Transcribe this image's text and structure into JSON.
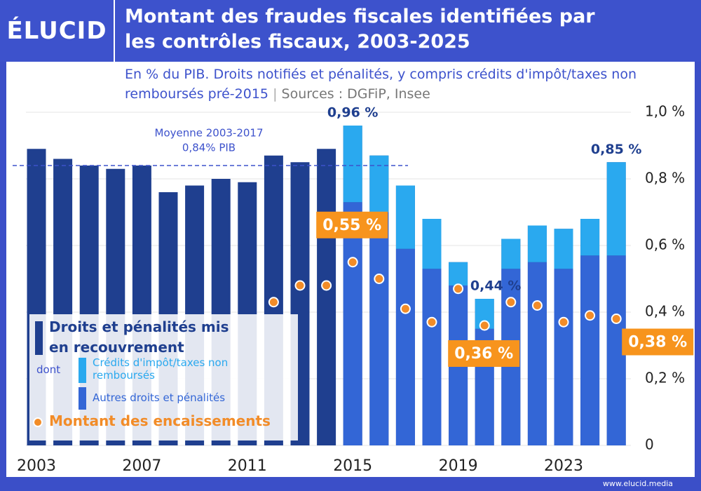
{
  "header": {
    "logo": "ÉLUCID"
  },
  "chart_data": {
    "type": "bar",
    "title": "Montant des fraudes fiscales identifiées par les contrôles fiscaux, 2003-2025",
    "subtitle": "En % du PIB. Droits notifiés et pénalités, y compris crédits d'impôt/taxes non remboursés pré-2015",
    "source": "Sources : DGFiP, Insee",
    "categories": [
      "2003",
      null,
      null,
      null,
      "2007",
      null,
      null,
      null,
      "2011",
      null,
      null,
      null,
      "2015",
      null,
      null,
      null,
      "2019",
      null,
      null,
      null,
      "2023",
      null,
      null
    ],
    "series": [
      {
        "name": "Droits et pénalités mis en recouvrement",
        "color": "#1f3f8f",
        "values": [
          0.89,
          0.86,
          0.84,
          0.83,
          0.84,
          0.76,
          0.78,
          0.8,
          0.79,
          0.87,
          0.85,
          0.89,
          0.96,
          0.87,
          0.78,
          0.68,
          0.55,
          0.44,
          0.62,
          0.66,
          0.65,
          0.68,
          0.85
        ],
        "value_labels": [
          null,
          null,
          null,
          null,
          null,
          null,
          null,
          null,
          null,
          null,
          null,
          null,
          "0,96 %",
          null,
          null,
          null,
          null,
          "0,44 %",
          null,
          null,
          null,
          null,
          "0,85 %"
        ]
      },
      {
        "name": "Crédits d'impôt/taxes non remboursés",
        "color": "#2aa9ef",
        "values": [
          null,
          null,
          null,
          null,
          null,
          null,
          null,
          null,
          null,
          null,
          null,
          null,
          0.23,
          0.17,
          0.19,
          0.15,
          0.07,
          0.09,
          0.09,
          0.11,
          0.12,
          0.11,
          0.28
        ]
      },
      {
        "name": "Autres droits et pénalités",
        "color": "#3366d6",
        "values": [
          null,
          null,
          null,
          null,
          null,
          null,
          null,
          null,
          null,
          null,
          null,
          null,
          0.73,
          0.7,
          0.59,
          0.53,
          0.48,
          0.35,
          0.53,
          0.55,
          0.53,
          0.57,
          0.57
        ]
      },
      {
        "name": "Montant des encaissements",
        "color": "#f28c28",
        "type": "scatter",
        "values": [
          null,
          null,
          null,
          null,
          null,
          null,
          null,
          null,
          null,
          0.43,
          0.48,
          0.48,
          0.55,
          0.5,
          0.41,
          0.37,
          0.47,
          0.36,
          0.43,
          0.42,
          0.37,
          0.39,
          0.38
        ],
        "value_labels": [
          null,
          null,
          null,
          null,
          null,
          null,
          null,
          null,
          null,
          null,
          null,
          null,
          "0,55 %",
          null,
          null,
          null,
          null,
          "0,36 %",
          null,
          null,
          null,
          null,
          "0,38 %"
        ]
      }
    ],
    "legend_prefix": "dont",
    "average": {
      "label": "Moyenne 2003-2017",
      "value_label": "0,84% PIB",
      "value": 0.84
    },
    "ylim": [
      0,
      1
    ],
    "yticks": [
      0,
      {
        "value": 0.2,
        "label": "0,2 %"
      },
      {
        "value": 0.4,
        "label": "0,4 %"
      },
      {
        "value": 0.6,
        "label": "0,6 %"
      },
      {
        "value": 0.8,
        "label": "0,8 %"
      },
      {
        "value": 1,
        "label": "1,0 %"
      }
    ],
    "grid": true
  },
  "footer": {
    "url": "www.elucid.media"
  }
}
